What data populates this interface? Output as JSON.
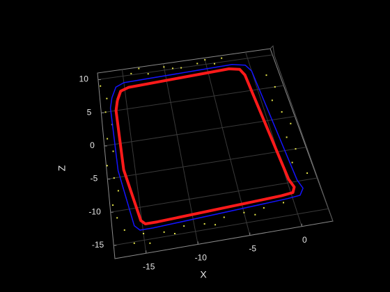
{
  "chart_data": {
    "type": "scatter3",
    "xlabel": "X",
    "zlabel": "Z",
    "xlim": [
      -18,
      3
    ],
    "zlim": [
      -17,
      11
    ],
    "xticks": [
      -15,
      -10,
      -5,
      0
    ],
    "zticks": [
      -15,
      -10,
      -5,
      0,
      5,
      10
    ],
    "grid": true,
    "background": "#000000",
    "axis_color": "#8c8c8c",
    "grid_color": "#3a3a3a",
    "series": [
      {
        "type": "scatter",
        "color": "#e6e64a",
        "x": [
          -17.8,
          -17.2,
          -17.5,
          -16.9,
          -17.6,
          -17.1,
          -17.9,
          -17.3,
          -17.0,
          -17.7,
          -17.4,
          -16.8,
          -14,
          -12,
          -10,
          -8,
          -6,
          -4,
          -3,
          -13,
          -9,
          -5,
          1.5,
          2.0,
          1.2,
          1.8,
          2.3,
          1.4,
          1.9,
          1.1,
          2.2,
          -15,
          -13,
          -11,
          -9,
          -7,
          -5,
          -3,
          -1,
          -12,
          -8,
          -4,
          -16,
          -14.5
        ],
        "z": [
          9,
          7,
          5,
          3,
          1,
          -1,
          -3,
          -5,
          -7,
          -9,
          -11,
          -13,
          10.2,
          9.8,
          10.5,
          10,
          10.3,
          9.9,
          10.6,
          10.8,
          10.1,
          10.7,
          7,
          5,
          3,
          1,
          -1,
          -3,
          -5,
          -7,
          -9,
          -14,
          -14.3,
          -13.9,
          -14.1,
          -13.6,
          -13.4,
          -13.2,
          -12.9,
          -14.8,
          -14.5,
          -14,
          -15.2,
          -15.6
        ]
      },
      {
        "type": "line",
        "color": "#1414ff",
        "width": 1.5,
        "x": [
          -16.6,
          -16,
          -15,
          -2,
          -0.5,
          0,
          1,
          1.3,
          0.8,
          -0.5,
          -14,
          -15.3,
          -15.8,
          -16.8,
          -16.9,
          -16.6
        ],
        "z": [
          7,
          8.5,
          9,
          9.4,
          9,
          8,
          -9.8,
          -11.2,
          -12.2,
          -12.4,
          -13.4,
          -13.4,
          -12.6,
          -4,
          5.5,
          7
        ]
      },
      {
        "type": "line",
        "color": "#ff1a1a",
        "width": 4,
        "x": [
          -16,
          -15.5,
          -14.5,
          -2.5,
          -1.3,
          -0.9,
          0.2,
          0.5,
          0.2,
          -1,
          -13.5,
          -14.7,
          -15.1,
          -16.2,
          -16.3,
          -16
        ],
        "z": [
          6.5,
          7.8,
          8.2,
          8.8,
          8.5,
          7.5,
          -9.5,
          -10.8,
          -11.6,
          -11.8,
          -12.6,
          -12.6,
          -12,
          -4,
          5,
          6.5
        ]
      }
    ]
  }
}
